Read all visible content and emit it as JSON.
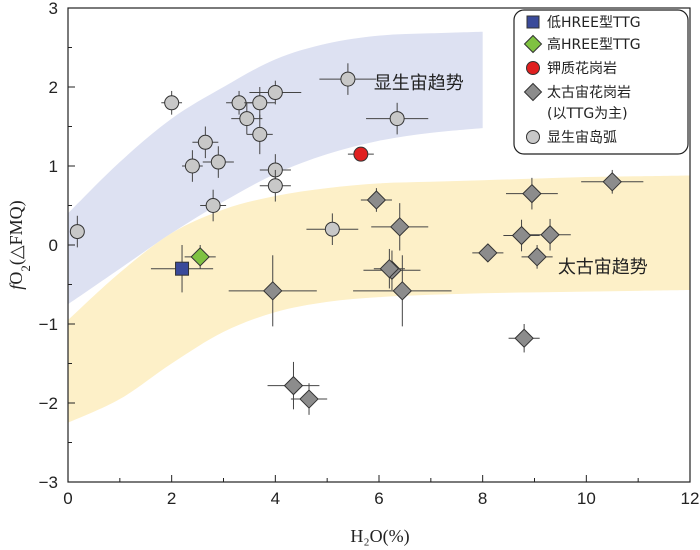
{
  "chart_data": {
    "type": "scatter",
    "xlabel": "H₂O(%)",
    "ylabel_italic": "f",
    "ylabel_main": "O",
    "ylabel_sub": "2",
    "ylabel_paren": "(△FMQ)",
    "xlim": [
      0,
      12
    ],
    "ylim": [
      -3,
      3
    ],
    "x_ticks": [
      "0",
      "2",
      "4",
      "6",
      "8",
      "10",
      "12"
    ],
    "y_ticks": [
      "3",
      "2",
      "1",
      "0",
      "−1",
      "−2",
      "−3"
    ],
    "grid": false,
    "legend_position": "top-right",
    "bands": [
      {
        "label": "显生宙趋势",
        "color": "#dde1f2",
        "upper": [
          [
            0,
            0.4
          ],
          [
            1,
            1.05
          ],
          [
            2,
            1.6
          ],
          [
            3,
            2.0
          ],
          [
            4,
            2.35
          ],
          [
            5,
            2.55
          ],
          [
            6,
            2.65
          ],
          [
            7,
            2.68
          ],
          [
            8,
            2.7
          ]
        ],
        "lower": [
          [
            0,
            -0.75
          ],
          [
            1,
            -0.3
          ],
          [
            2,
            0.15
          ],
          [
            3,
            0.55
          ],
          [
            4,
            0.9
          ],
          [
            5,
            1.15
          ],
          [
            6,
            1.32
          ],
          [
            7,
            1.42
          ],
          [
            8,
            1.48
          ]
        ]
      },
      {
        "label": "太古宙趋势",
        "color": "#fdf0c8",
        "upper": [
          [
            0,
            -0.95
          ],
          [
            1,
            -0.35
          ],
          [
            2,
            0.15
          ],
          [
            3,
            0.45
          ],
          [
            4,
            0.62
          ],
          [
            5,
            0.72
          ],
          [
            6,
            0.78
          ],
          [
            7,
            0.8
          ],
          [
            8,
            0.82
          ],
          [
            9,
            0.84
          ],
          [
            10,
            0.86
          ],
          [
            11,
            0.87
          ],
          [
            12,
            0.88
          ]
        ],
        "lower": [
          [
            0,
            -2.25
          ],
          [
            1,
            -1.95
          ],
          [
            2,
            -1.5
          ],
          [
            3,
            -1.1
          ],
          [
            4,
            -0.85
          ],
          [
            5,
            -0.72
          ],
          [
            6,
            -0.66
          ],
          [
            7,
            -0.63
          ],
          [
            8,
            -0.61
          ],
          [
            9,
            -0.6
          ],
          [
            10,
            -0.59
          ],
          [
            11,
            -0.58
          ],
          [
            12,
            -0.57
          ]
        ]
      }
    ],
    "series": [
      {
        "name": "低HREE型TTG",
        "marker": "square",
        "color": "#3a4a9a",
        "points": [
          {
            "x": 2.2,
            "y": -0.3,
            "xerr": 0.6,
            "yerr": 0.3
          }
        ]
      },
      {
        "name": "高HREE型TTG",
        "marker": "diamond",
        "color": "#7fc241",
        "points": [
          {
            "x": 2.55,
            "y": -0.15,
            "xerr": 0.3,
            "yerr": 0.15
          }
        ]
      },
      {
        "name": "钾质花岗岩",
        "marker": "circle",
        "color": "#e02020",
        "points": [
          {
            "x": 5.65,
            "y": 1.15,
            "xerr": 0.25,
            "yerr": 0.08
          }
        ]
      },
      {
        "name": "太古宙花岗岩",
        "name_line2": "(以TTG为主)",
        "marker": "diamond",
        "color": "#8c8c8c",
        "points": [
          {
            "x": 3.95,
            "y": -0.58,
            "xerr": 0.85,
            "yerr": 0.45
          },
          {
            "x": 4.35,
            "y": -1.78,
            "xerr": 0.5,
            "yerr": 0.3
          },
          {
            "x": 4.65,
            "y": -1.95,
            "xerr": 0.35,
            "yerr": 0.2
          },
          {
            "x": 5.95,
            "y": 0.57,
            "xerr": 0.3,
            "yerr": 0.15
          },
          {
            "x": 6.25,
            "y": -0.32,
            "xerr": 0.55,
            "yerr": 0.25
          },
          {
            "x": 6.2,
            "y": -0.3,
            "xerr": 0.3,
            "yerr": 0.25
          },
          {
            "x": 6.4,
            "y": 0.23,
            "xerr": 0.55,
            "yerr": 0.3
          },
          {
            "x": 6.45,
            "y": -0.58,
            "xerr": 0.95,
            "yerr": 0.45
          },
          {
            "x": 8.1,
            "y": -0.1,
            "xerr": 0.3,
            "yerr": 0.1
          },
          {
            "x": 8.75,
            "y": 0.12,
            "xerr": 0.35,
            "yerr": 0.2
          },
          {
            "x": 8.8,
            "y": -1.18,
            "xerr": 0.3,
            "yerr": 0.18
          },
          {
            "x": 8.95,
            "y": 0.65,
            "xerr": 0.5,
            "yerr": 0.2
          },
          {
            "x": 9.05,
            "y": -0.15,
            "xerr": 0.3,
            "yerr": 0.15
          },
          {
            "x": 9.3,
            "y": 0.13,
            "xerr": 0.4,
            "yerr": 0.2
          },
          {
            "x": 10.5,
            "y": 0.8,
            "xerr": 0.6,
            "yerr": 0.15
          }
        ]
      },
      {
        "name": "显生宙岛弧",
        "marker": "circle",
        "color": "#c8c8c8",
        "points": [
          {
            "x": 0.18,
            "y": 0.17,
            "xerr": 0.1,
            "yerr": 0.2
          },
          {
            "x": 2.0,
            "y": 1.8,
            "xerr": 0.2,
            "yerr": 0.15
          },
          {
            "x": 2.4,
            "y": 1.0,
            "xerr": 0.2,
            "yerr": 0.2
          },
          {
            "x": 2.65,
            "y": 1.3,
            "xerr": 0.25,
            "yerr": 0.2
          },
          {
            "x": 2.8,
            "y": 0.5,
            "xerr": 0.25,
            "yerr": 0.2
          },
          {
            "x": 2.9,
            "y": 1.05,
            "xerr": 0.3,
            "yerr": 0.2
          },
          {
            "x": 3.3,
            "y": 1.8,
            "xerr": 0.25,
            "yerr": 0.15
          },
          {
            "x": 3.45,
            "y": 1.6,
            "xerr": 0.3,
            "yerr": 0.2
          },
          {
            "x": 3.7,
            "y": 1.8,
            "xerr": 0.3,
            "yerr": 0.2
          },
          {
            "x": 3.7,
            "y": 1.4,
            "xerr": 0.25,
            "yerr": 0.25
          },
          {
            "x": 4.0,
            "y": 1.93,
            "xerr": 0.5,
            "yerr": 0.15
          },
          {
            "x": 4.0,
            "y": 0.95,
            "xerr": 0.3,
            "yerr": 0.2
          },
          {
            "x": 4.0,
            "y": 0.75,
            "xerr": 0.3,
            "yerr": 0.2
          },
          {
            "x": 5.1,
            "y": 0.2,
            "xerr": 0.5,
            "yerr": 0.2
          },
          {
            "x": 5.4,
            "y": 2.1,
            "xerr": 0.55,
            "yerr": 0.2
          },
          {
            "x": 6.35,
            "y": 1.6,
            "xerr": 0.6,
            "yerr": 0.2
          }
        ]
      }
    ]
  }
}
